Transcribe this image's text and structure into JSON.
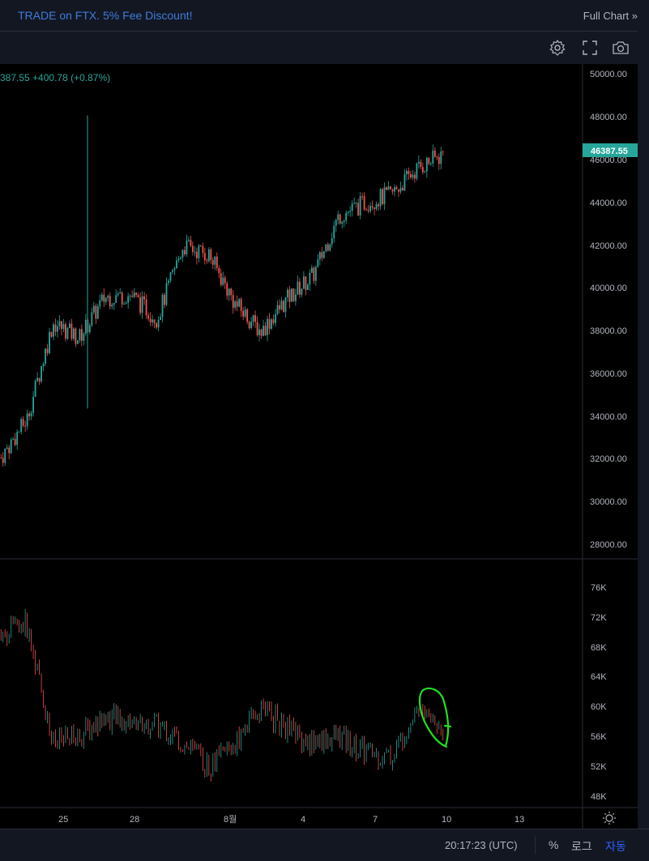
{
  "header": {
    "promo_text": "TRADE on FTX. 5% Fee Discount!",
    "full_chart_link": "Full Chart »"
  },
  "toolbar": {
    "icons": [
      "settings-icon",
      "fullscreen-icon",
      "camera-icon"
    ]
  },
  "price_info": {
    "text": "387.55 +400.78 (+0.87%)"
  },
  "price_axis": {
    "labels": [
      "50000.00",
      "48000.00",
      "46000.00",
      "44000.00",
      "42000.00",
      "40000.00",
      "38000.00",
      "36000.00",
      "34000.00",
      "32000.00",
      "30000.00",
      "28000.00"
    ],
    "current_price_label": "46387.55",
    "current_price_color": "#26a69a"
  },
  "volume_axis": {
    "labels": [
      "76K",
      "72K",
      "68K",
      "64K",
      "60K",
      "56K",
      "52K",
      "48K"
    ]
  },
  "time_axis": {
    "labels": [
      "25",
      "28",
      "8월",
      "4",
      "7",
      "10",
      "13"
    ]
  },
  "bottom_bar": {
    "clock": "20:17:23 (UTC)",
    "percent": "%",
    "log": "로그",
    "auto": "자동"
  },
  "colors": {
    "up": "#26a69a",
    "down": "#ef5350",
    "annotation": "#22e01d"
  },
  "chart_data": [
    {
      "type": "candlestick",
      "title": "",
      "ylim": [
        27000,
        51000
      ],
      "x": [
        "24",
        "25",
        "26",
        "27",
        "28",
        "29",
        "30",
        "31",
        "8월",
        "2",
        "3",
        "4",
        "5",
        "6",
        "7",
        "8",
        "9",
        "10"
      ],
      "close": [
        32200,
        34000,
        38500,
        37800,
        39700,
        39800,
        38700,
        42100,
        41700,
        39400,
        38100,
        39600,
        40700,
        43500,
        44100,
        44500,
        45700,
        46387.55
      ]
    },
    {
      "type": "line",
      "title": "",
      "ylim": [
        47000,
        78000
      ],
      "x": [
        "24",
        "25",
        "26",
        "27",
        "28",
        "29",
        "30",
        "31",
        "8월",
        "2",
        "3",
        "4",
        "5",
        "6",
        "7",
        "8",
        "9",
        "10"
      ],
      "values": [
        70000,
        71000,
        55000,
        56000,
        58500,
        58000,
        57500,
        55000,
        52000,
        55000,
        60000,
        57000,
        55000,
        56000,
        54000,
        53000,
        60000,
        57000
      ]
    }
  ]
}
